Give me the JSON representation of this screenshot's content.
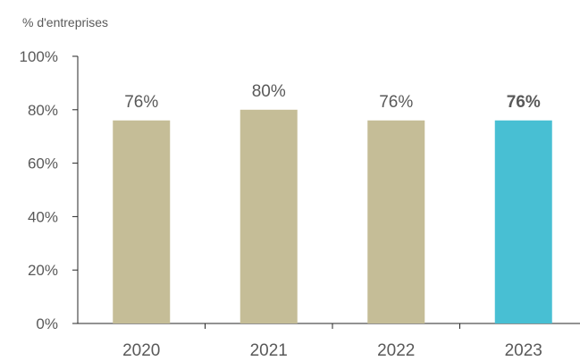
{
  "chart_data": {
    "type": "bar",
    "ylabel": "% d'entreprises",
    "categories": [
      "2020",
      "2021",
      "2022",
      "2023"
    ],
    "values": [
      76,
      80,
      76,
      76
    ],
    "data_labels": [
      "76%",
      "80%",
      "76%",
      "76%"
    ],
    "highlight_index": 3,
    "ylim": [
      0,
      100
    ],
    "yticks": [
      0,
      20,
      40,
      60,
      80,
      100
    ],
    "ytick_labels": [
      "0%",
      "20%",
      "40%",
      "60%",
      "80%",
      "100%"
    ],
    "grid": false,
    "legend": "none"
  },
  "colors": {
    "bar": "#c5bd97",
    "highlight_bar": "#48bfd3",
    "text": "#595959",
    "axis": "#262626"
  }
}
